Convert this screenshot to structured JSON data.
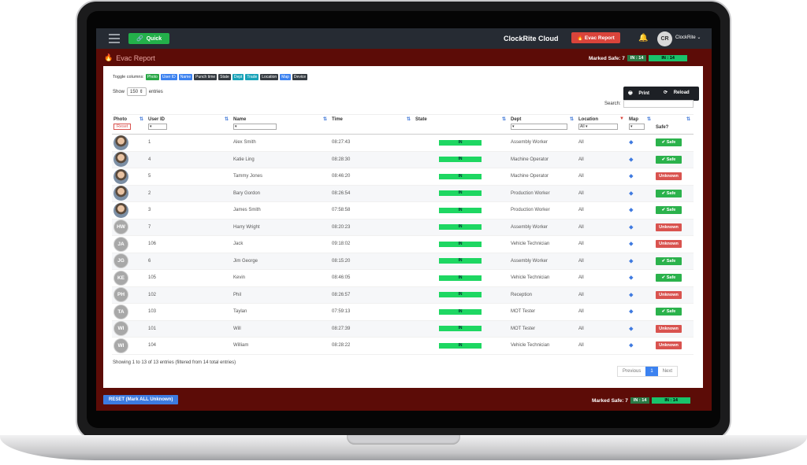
{
  "navbar": {
    "quick": "Quick",
    "app_title": "ClockRite Cloud",
    "evac_button": "Evac Report",
    "avatar_initials": "CR",
    "user_name": "ClockRite"
  },
  "header": {
    "title": "Evac Report",
    "marked_safe": "Marked Safe: 7",
    "in_badge_small": "IN : 14",
    "in_badge_big": "IN : 14"
  },
  "toggle": {
    "label": "Toggle columns:",
    "items": [
      "Photo",
      "User ID",
      "Name",
      "Punch time",
      "State",
      "Dept",
      "Trade",
      "Location",
      "Map",
      "Device"
    ]
  },
  "show": {
    "label": "Show",
    "value": "150",
    "entries": "entries"
  },
  "buttons": {
    "print": "Print",
    "reload": "Reload",
    "search_label": "Search:"
  },
  "columns": {
    "photo": "Photo",
    "reset": "Reset",
    "user_id": "User ID",
    "name": "Name",
    "time": "Time",
    "state": "State",
    "dept": "Dept",
    "location": "Location",
    "location_sel": "All",
    "map": "Map",
    "safe": "Safe?"
  },
  "rows": [
    {
      "init": "",
      "uid": "1",
      "name": "Alex Smith",
      "time": "08:27:43",
      "state": "IN",
      "dept": "Assembly Worker",
      "loc": "All",
      "safe": "Safe"
    },
    {
      "init": "",
      "uid": "4",
      "name": "Katie Ling",
      "time": "08:28:30",
      "state": "IN",
      "dept": "Machine Operator",
      "loc": "All",
      "safe": "Safe"
    },
    {
      "init": "",
      "uid": "5",
      "name": "Tammy Jones",
      "time": "08:46:20",
      "state": "IN",
      "dept": "Machine Operator",
      "loc": "All",
      "safe": "Unknown"
    },
    {
      "init": "",
      "uid": "2",
      "name": "Bary Gordon",
      "time": "08:26:54",
      "state": "IN",
      "dept": "Production Worker",
      "loc": "All",
      "safe": "Safe"
    },
    {
      "init": "",
      "uid": "3",
      "name": "James Smith",
      "time": "07:58:58",
      "state": "IN",
      "dept": "Production Worker",
      "loc": "All",
      "safe": "Safe"
    },
    {
      "init": "HW",
      "uid": "7",
      "name": "Harry Wright",
      "time": "08:20:23",
      "state": "IN",
      "dept": "Assembly Worker",
      "loc": "All",
      "safe": "Unknown"
    },
    {
      "init": "JA",
      "uid": "106",
      "name": "Jack",
      "time": "09:18:02",
      "state": "IN",
      "dept": "Vehicle Technician",
      "loc": "All",
      "safe": "Unknown"
    },
    {
      "init": "JG",
      "uid": "6",
      "name": "Jim George",
      "time": "08:15:20",
      "state": "IN",
      "dept": "Assembly Worker",
      "loc": "All",
      "safe": "Safe"
    },
    {
      "init": "KE",
      "uid": "105",
      "name": "Kevin",
      "time": "08:46:05",
      "state": "IN",
      "dept": "Vehicle Technician",
      "loc": "All",
      "safe": "Safe"
    },
    {
      "init": "PH",
      "uid": "102",
      "name": "Phil",
      "time": "08:26:57",
      "state": "IN",
      "dept": "Reception",
      "loc": "All",
      "safe": "Unknown"
    },
    {
      "init": "TA",
      "uid": "103",
      "name": "Taylan",
      "time": "07:59:13",
      "state": "IN",
      "dept": "MOT Tester",
      "loc": "All",
      "safe": "Safe"
    },
    {
      "init": "WI",
      "uid": "101",
      "name": "Will",
      "time": "08:27:39",
      "state": "IN",
      "dept": "MOT Tester",
      "loc": "All",
      "safe": "Unknown"
    },
    {
      "init": "WI",
      "uid": "104",
      "name": "William",
      "time": "08:28:22",
      "state": "IN",
      "dept": "Vehicle Technician",
      "loc": "All",
      "safe": "Unknown"
    }
  ],
  "footer": {
    "info": "Showing 1 to 13 of 13 entries (filtered from 14 total entries)",
    "previous": "Previous",
    "page": "1",
    "next": "Next"
  },
  "bottom": {
    "reset_all": "RESET (Mark ALL Unknown)",
    "marked_safe": "Marked Safe: 7",
    "in_small": "IN : 14",
    "in_big": "IN : 14"
  },
  "colors": {
    "toggle": [
      "#28a745",
      "#3c82f0",
      "#3c82f0",
      "#343a40",
      "#343a40",
      "#17a2b8",
      "#17a2b8",
      "#343a40",
      "#3c82f0",
      "#343a40"
    ]
  }
}
